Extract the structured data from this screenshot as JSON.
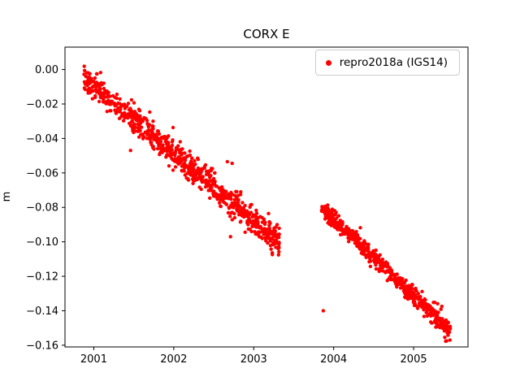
{
  "chart_data": {
    "type": "scatter",
    "title": "CORX E",
    "xlabel": "",
    "ylabel": "m",
    "grid": false,
    "axes": {
      "xlim": [
        2000.64,
        2005.68
      ],
      "ylim": [
        -0.161,
        0.013
      ],
      "xticks": [
        {
          "v": 2001,
          "label": "2001"
        },
        {
          "v": 2002,
          "label": "2002"
        },
        {
          "v": 2003,
          "label": "2003"
        },
        {
          "v": 2004,
          "label": "2004"
        },
        {
          "v": 2005,
          "label": "2005"
        }
      ],
      "yticks": [
        {
          "v": 0.0,
          "label": "0.00"
        },
        {
          "v": -0.02,
          "label": "−0.02"
        },
        {
          "v": -0.04,
          "label": "−0.04"
        },
        {
          "v": -0.06,
          "label": "−0.06"
        },
        {
          "v": -0.08,
          "label": "−0.08"
        },
        {
          "v": -0.1,
          "label": "−0.10"
        },
        {
          "v": -0.12,
          "label": "−0.12"
        },
        {
          "v": -0.14,
          "label": "−0.14"
        },
        {
          "v": -0.16,
          "label": "−0.16"
        }
      ]
    },
    "legend": {
      "position": "upper right"
    },
    "series": [
      {
        "name": "repro2018a (IGS14)",
        "color": "#ff0000",
        "marker_radius_px": 2.2,
        "trend_segments": [
          {
            "x_start": 2000.87,
            "x_end": 2003.32,
            "y_start": -0.004,
            "y_end": -0.1005,
            "n": 800,
            "noise_sd": 0.004
          },
          {
            "x_start": 2003.85,
            "x_end": 2005.46,
            "y_start": -0.0805,
            "y_end": -0.1515,
            "n": 540,
            "noise_sd": 0.0026
          }
        ],
        "outliers": [
          [
            2001.46,
            -0.047
          ],
          [
            2002.71,
            -0.097
          ],
          [
            2003.87,
            -0.14
          ],
          [
            2002.67,
            -0.0535
          ],
          [
            2002.73,
            -0.0545
          ]
        ]
      }
    ]
  }
}
